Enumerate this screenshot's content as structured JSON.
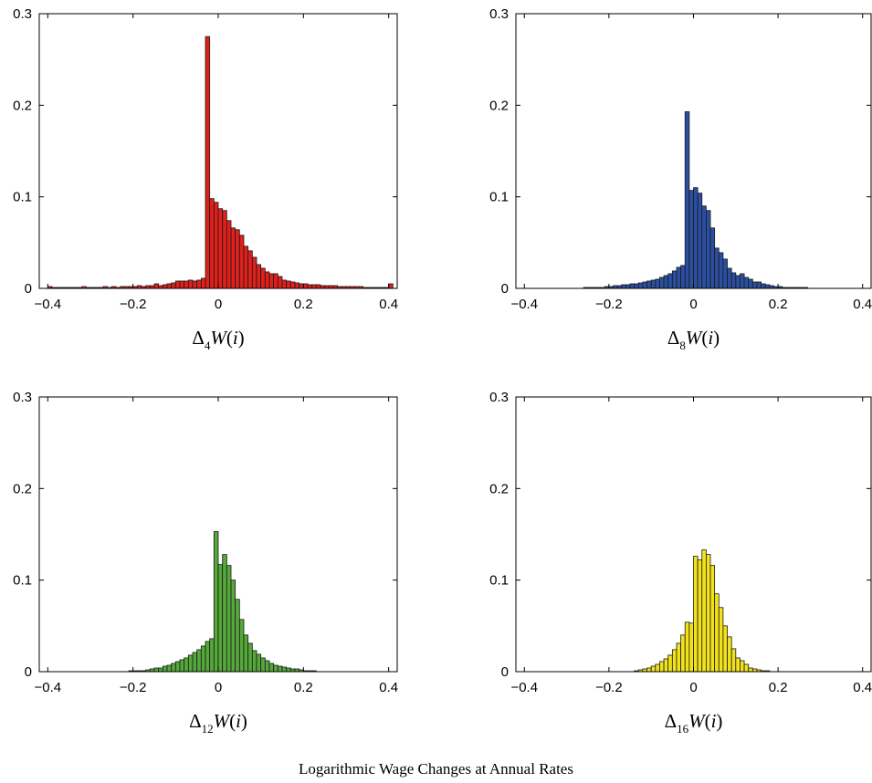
{
  "caption": "Logarithmic Wage Changes at Annual Rates",
  "chart_data": [
    {
      "type": "bar",
      "xlabel_parts": [
        "Δ",
        "4",
        "W",
        "(",
        "i",
        ")"
      ],
      "color": "#e0201b",
      "xlim": [
        -0.42,
        0.42
      ],
      "ylim": [
        0,
        0.3
      ],
      "xticks": [
        -0.4,
        -0.2,
        0,
        0.2,
        0.4
      ],
      "yticks": [
        0,
        0.1,
        0.2,
        0.3
      ],
      "xtick_labels": [
        "−0.4",
        "−0.2",
        "0",
        "0.2",
        "0.4"
      ],
      "ytick_labels": [
        "0",
        "0.1",
        "0.2",
        "0.3"
      ],
      "bin_width": 0.01,
      "x": [
        -0.395,
        -0.385,
        -0.375,
        -0.365,
        -0.355,
        -0.345,
        -0.335,
        -0.325,
        -0.315,
        -0.305,
        -0.295,
        -0.285,
        -0.275,
        -0.265,
        -0.255,
        -0.245,
        -0.235,
        -0.225,
        -0.215,
        -0.205,
        -0.195,
        -0.185,
        -0.175,
        -0.165,
        -0.155,
        -0.145,
        -0.135,
        -0.125,
        -0.115,
        -0.105,
        -0.095,
        -0.085,
        -0.075,
        -0.065,
        -0.055,
        -0.045,
        -0.035,
        -0.025,
        -0.015,
        -0.005,
        0.005,
        0.015,
        0.025,
        0.035,
        0.045,
        0.055,
        0.065,
        0.075,
        0.085,
        0.095,
        0.105,
        0.115,
        0.125,
        0.135,
        0.145,
        0.155,
        0.165,
        0.175,
        0.185,
        0.195,
        0.205,
        0.215,
        0.225,
        0.235,
        0.245,
        0.255,
        0.265,
        0.275,
        0.285,
        0.295,
        0.305,
        0.315,
        0.325,
        0.335,
        0.345,
        0.355,
        0.365,
        0.375,
        0.385,
        0.395,
        0.405
      ],
      "values": [
        0.002,
        0.001,
        0.001,
        0.001,
        0.001,
        0.001,
        0.001,
        0.001,
        0.002,
        0.001,
        0.001,
        0.001,
        0.001,
        0.002,
        0.001,
        0.002,
        0.001,
        0.002,
        0.002,
        0.002,
        0.002,
        0.003,
        0.002,
        0.003,
        0.003,
        0.005,
        0.003,
        0.004,
        0.005,
        0.006,
        0.008,
        0.008,
        0.008,
        0.009,
        0.008,
        0.009,
        0.011,
        0.275,
        0.098,
        0.094,
        0.087,
        0.085,
        0.074,
        0.066,
        0.064,
        0.058,
        0.046,
        0.041,
        0.034,
        0.026,
        0.022,
        0.018,
        0.016,
        0.016,
        0.013,
        0.009,
        0.008,
        0.007,
        0.006,
        0.005,
        0.005,
        0.004,
        0.004,
        0.004,
        0.003,
        0.003,
        0.003,
        0.003,
        0.002,
        0.002,
        0.002,
        0.002,
        0.002,
        0.002,
        0.001,
        0.001,
        0.001,
        0.001,
        0.001,
        0.001,
        0.005
      ]
    },
    {
      "type": "bar",
      "xlabel_parts": [
        "Δ",
        "8",
        "W",
        "(",
        "i",
        ")"
      ],
      "color": "#2b4fa0",
      "xlim": [
        -0.42,
        0.42
      ],
      "ylim": [
        0,
        0.3
      ],
      "xticks": [
        -0.4,
        -0.2,
        0,
        0.2,
        0.4
      ],
      "yticks": [
        0,
        0.1,
        0.2,
        0.3
      ],
      "xtick_labels": [
        "−0.4",
        "−0.2",
        "0",
        "0.2",
        "0.4"
      ],
      "ytick_labels": [
        "0",
        "0.1",
        "0.2",
        "0.3"
      ],
      "bin_width": 0.01,
      "x": [
        -0.395,
        -0.385,
        -0.375,
        -0.365,
        -0.355,
        -0.345,
        -0.335,
        -0.325,
        -0.315,
        -0.305,
        -0.295,
        -0.285,
        -0.275,
        -0.265,
        -0.255,
        -0.245,
        -0.235,
        -0.225,
        -0.215,
        -0.205,
        -0.195,
        -0.185,
        -0.175,
        -0.165,
        -0.155,
        -0.145,
        -0.135,
        -0.125,
        -0.115,
        -0.105,
        -0.095,
        -0.085,
        -0.075,
        -0.065,
        -0.055,
        -0.045,
        -0.035,
        -0.025,
        -0.015,
        -0.005,
        0.005,
        0.015,
        0.025,
        0.035,
        0.045,
        0.055,
        0.065,
        0.075,
        0.085,
        0.095,
        0.105,
        0.115,
        0.125,
        0.135,
        0.145,
        0.155,
        0.165,
        0.175,
        0.185,
        0.195,
        0.205,
        0.215,
        0.225,
        0.235,
        0.245,
        0.255,
        0.265,
        0.275,
        0.285,
        0.295,
        0.305,
        0.315,
        0.325,
        0.335,
        0.345,
        0.355,
        0.365,
        0.375,
        0.385,
        0.395
      ],
      "values": [
        0.0,
        0.0,
        0.0,
        0.0,
        0.0,
        0.0,
        0.0,
        0.0,
        0.0,
        0.0,
        0.0,
        0.0,
        0.0,
        0.0,
        0.001,
        0.001,
        0.001,
        0.001,
        0.001,
        0.002,
        0.002,
        0.003,
        0.003,
        0.004,
        0.004,
        0.005,
        0.005,
        0.006,
        0.007,
        0.008,
        0.009,
        0.01,
        0.012,
        0.014,
        0.016,
        0.019,
        0.023,
        0.025,
        0.193,
        0.107,
        0.11,
        0.104,
        0.09,
        0.085,
        0.066,
        0.044,
        0.039,
        0.032,
        0.022,
        0.017,
        0.014,
        0.016,
        0.012,
        0.01,
        0.007,
        0.007,
        0.005,
        0.004,
        0.003,
        0.002,
        0.002,
        0.001,
        0.001,
        0.001,
        0.001,
        0.001,
        0.001,
        0.0,
        0.0,
        0.0,
        0.0,
        0.0,
        0.0,
        0.0,
        0.0,
        0.0,
        0.0,
        0.0,
        0.0,
        0.0
      ]
    },
    {
      "type": "bar",
      "xlabel_parts": [
        "Δ",
        "12",
        "W",
        "(",
        "i",
        ")"
      ],
      "color": "#55a83a",
      "xlim": [
        -0.42,
        0.42
      ],
      "ylim": [
        0,
        0.3
      ],
      "xticks": [
        -0.4,
        -0.2,
        0,
        0.2,
        0.4
      ],
      "yticks": [
        0,
        0.1,
        0.2,
        0.3
      ],
      "xtick_labels": [
        "−0.4",
        "−0.2",
        "0",
        "0.2",
        "0.4"
      ],
      "ytick_labels": [
        "0",
        "0.1",
        "0.2",
        "0.3"
      ],
      "bin_width": 0.01,
      "x": [
        -0.395,
        -0.385,
        -0.375,
        -0.365,
        -0.355,
        -0.345,
        -0.335,
        -0.325,
        -0.315,
        -0.305,
        -0.295,
        -0.285,
        -0.275,
        -0.265,
        -0.255,
        -0.245,
        -0.235,
        -0.225,
        -0.215,
        -0.205,
        -0.195,
        -0.185,
        -0.175,
        -0.165,
        -0.155,
        -0.145,
        -0.135,
        -0.125,
        -0.115,
        -0.105,
        -0.095,
        -0.085,
        -0.075,
        -0.065,
        -0.055,
        -0.045,
        -0.035,
        -0.025,
        -0.015,
        -0.005,
        0.005,
        0.015,
        0.025,
        0.035,
        0.045,
        0.055,
        0.065,
        0.075,
        0.085,
        0.095,
        0.105,
        0.115,
        0.125,
        0.135,
        0.145,
        0.155,
        0.165,
        0.175,
        0.185,
        0.195,
        0.205,
        0.215,
        0.225,
        0.235,
        0.245,
        0.255,
        0.265,
        0.275,
        0.285,
        0.295,
        0.305,
        0.315,
        0.325,
        0.335,
        0.345,
        0.355,
        0.365,
        0.375,
        0.385,
        0.395
      ],
      "values": [
        0.0,
        0.0,
        0.0,
        0.0,
        0.0,
        0.0,
        0.0,
        0.0,
        0.0,
        0.0,
        0.0,
        0.0,
        0.0,
        0.0,
        0.0,
        0.0,
        0.0,
        0.0,
        0.0,
        0.001,
        0.001,
        0.001,
        0.001,
        0.002,
        0.003,
        0.004,
        0.004,
        0.006,
        0.007,
        0.009,
        0.011,
        0.013,
        0.015,
        0.018,
        0.021,
        0.024,
        0.028,
        0.033,
        0.036,
        0.153,
        0.117,
        0.128,
        0.116,
        0.1,
        0.079,
        0.057,
        0.04,
        0.031,
        0.023,
        0.019,
        0.015,
        0.012,
        0.009,
        0.007,
        0.006,
        0.005,
        0.004,
        0.003,
        0.003,
        0.002,
        0.001,
        0.001,
        0.001,
        0.0,
        0.0,
        0.0,
        0.0,
        0.0,
        0.0,
        0.0,
        0.0,
        0.0,
        0.0,
        0.0,
        0.0,
        0.0,
        0.0,
        0.0,
        0.0,
        0.0
      ]
    },
    {
      "type": "bar",
      "xlabel_parts": [
        "Δ",
        "16",
        "W",
        "(",
        "i",
        ")"
      ],
      "color": "#f2e21b",
      "xlim": [
        -0.42,
        0.42
      ],
      "ylim": [
        0,
        0.3
      ],
      "xticks": [
        -0.4,
        -0.2,
        0,
        0.2,
        0.4
      ],
      "yticks": [
        0,
        0.1,
        0.2,
        0.3
      ],
      "xtick_labels": [
        "−0.4",
        "−0.2",
        "0",
        "0.2",
        "0.4"
      ],
      "ytick_labels": [
        "0",
        "0.1",
        "0.2",
        "0.3"
      ],
      "bin_width": 0.01,
      "x": [
        -0.395,
        -0.385,
        -0.375,
        -0.365,
        -0.355,
        -0.345,
        -0.335,
        -0.325,
        -0.315,
        -0.305,
        -0.295,
        -0.285,
        -0.275,
        -0.265,
        -0.255,
        -0.245,
        -0.235,
        -0.225,
        -0.215,
        -0.205,
        -0.195,
        -0.185,
        -0.175,
        -0.165,
        -0.155,
        -0.145,
        -0.135,
        -0.125,
        -0.115,
        -0.105,
        -0.095,
        -0.085,
        -0.075,
        -0.065,
        -0.055,
        -0.045,
        -0.035,
        -0.025,
        -0.015,
        -0.005,
        0.005,
        0.015,
        0.025,
        0.035,
        0.045,
        0.055,
        0.065,
        0.075,
        0.085,
        0.095,
        0.105,
        0.115,
        0.125,
        0.135,
        0.145,
        0.155,
        0.165,
        0.175,
        0.185,
        0.195,
        0.205,
        0.215,
        0.225,
        0.235,
        0.245,
        0.255,
        0.265,
        0.275,
        0.285,
        0.295,
        0.305,
        0.315,
        0.325,
        0.335,
        0.345,
        0.355,
        0.365,
        0.375,
        0.385,
        0.395
      ],
      "values": [
        0.0,
        0.0,
        0.0,
        0.0,
        0.0,
        0.0,
        0.0,
        0.0,
        0.0,
        0.0,
        0.0,
        0.0,
        0.0,
        0.0,
        0.0,
        0.0,
        0.0,
        0.0,
        0.0,
        0.0,
        0.0,
        0.0,
        0.0,
        0.0,
        0.0,
        0.0,
        0.001,
        0.002,
        0.003,
        0.004,
        0.006,
        0.008,
        0.011,
        0.014,
        0.018,
        0.024,
        0.031,
        0.04,
        0.054,
        0.053,
        0.126,
        0.122,
        0.133,
        0.128,
        0.116,
        0.085,
        0.07,
        0.05,
        0.038,
        0.025,
        0.015,
        0.012,
        0.008,
        0.004,
        0.003,
        0.002,
        0.001,
        0.001,
        0.0,
        0.0,
        0.0,
        0.0,
        0.0,
        0.0,
        0.0,
        0.0,
        0.0,
        0.0,
        0.0,
        0.0,
        0.0,
        0.0,
        0.0,
        0.0,
        0.0,
        0.0,
        0.0,
        0.0,
        0.0,
        0.0
      ]
    }
  ]
}
